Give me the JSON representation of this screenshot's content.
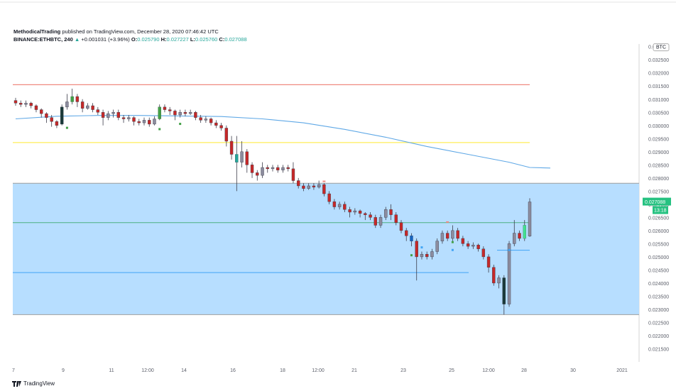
{
  "header": {
    "author": "MethodicalTrading",
    "published": "published on TradingView.com, December 28, 2020 07:46:42 UTC",
    "symbol": "BINANCE:ETHBTC, 240",
    "change_arrow": "▲",
    "change": "+0.001031 (+3.96%)",
    "o_label": "O:",
    "o_value": "0.025790",
    "h_label": "H:",
    "h_value": "0.027227",
    "l_label": "L:",
    "l_value": "0.025760",
    "c_label": "C:",
    "c_value": "0.027088"
  },
  "footer": {
    "brand": "TradingView"
  },
  "colors": {
    "up": "#26a69a",
    "down": "#b71c1c",
    "zone": "#b3dcff",
    "ma": "#5fa8e6",
    "red_line": "#ef8a80",
    "yellow_line": "#ffee58",
    "green_line": "#4caf80",
    "blue_line": "#42a5f5"
  },
  "chart_data": {
    "type": "candlestick",
    "y_axis_currency": "BTC",
    "y_ticks": [
      "0.032500",
      "0.032000",
      "0.031500",
      "0.031000",
      "0.030500",
      "0.030000",
      "0.029500",
      "0.029000",
      "0.028500",
      "0.028000",
      "0.027500",
      "0.027000",
      "0.026500",
      "0.026000",
      "0.025500",
      "0.025000",
      "0.024500",
      "0.024000",
      "0.023500",
      "0.023000",
      "0.022500",
      "0.022000",
      "0.021500"
    ],
    "ylim": [
      0.021,
      0.0331
    ],
    "x_ticks": [
      "7",
      "9",
      "11",
      "12:00",
      "14",
      "16",
      "18",
      "12:00",
      "21",
      "23",
      "25",
      "12:00",
      "28",
      "30",
      "2021"
    ],
    "last_price": "0.027088",
    "countdown": "13:18",
    "horizontal_levels": [
      {
        "name": "resistance",
        "value": 0.03155
      },
      {
        "name": "yellow",
        "value": 0.02935
      },
      {
        "name": "zone_top",
        "value": 0.0278
      },
      {
        "name": "green",
        "value": 0.0263
      },
      {
        "name": "blue",
        "value": 0.0244
      },
      {
        "name": "zone_bottom",
        "value": 0.0228
      }
    ],
    "moving_average": [
      [
        0,
        0.03025
      ],
      [
        8,
        0.03035
      ],
      [
        16,
        0.03038
      ],
      [
        24,
        0.03038
      ],
      [
        32,
        0.03036
      ],
      [
        40,
        0.03034
      ],
      [
        48,
        0.03025
      ],
      [
        56,
        0.0301
      ],
      [
        64,
        0.02985
      ],
      [
        72,
        0.02955
      ],
      [
        80,
        0.0292
      ],
      [
        88,
        0.0289
      ],
      [
        96,
        0.0286
      ],
      [
        100,
        0.0284
      ],
      [
        104,
        0.02838
      ]
    ],
    "candles": [
      [
        0.03095,
        0.03085,
        0.03105,
        0.03075
      ],
      [
        0.03085,
        0.0308,
        0.03095,
        0.0307
      ],
      [
        0.0308,
        0.03085,
        0.03095,
        0.0307
      ],
      [
        0.03085,
        0.03075,
        0.0309,
        0.03065
      ],
      [
        0.03075,
        0.0306,
        0.0308,
        0.0305
      ],
      [
        0.0306,
        0.03045,
        0.03065,
        0.0303
      ],
      [
        0.03045,
        0.0303,
        0.0305,
        0.0301
      ],
      [
        0.0303,
        0.03015,
        0.0304,
        0.02995
      ],
      [
        0.03015,
        0.03,
        0.0302,
        0.0299
      ],
      [
        0.03005,
        0.0307,
        0.0308,
        0.03
      ],
      [
        0.0307,
        0.0309,
        0.0312,
        0.0306
      ],
      [
        0.0309,
        0.0311,
        0.0314,
        0.0308
      ],
      [
        0.0311,
        0.0309,
        0.0312,
        0.0307
      ],
      [
        0.0309,
        0.03065,
        0.031,
        0.0305
      ],
      [
        0.03065,
        0.03075,
        0.03085,
        0.0306
      ],
      [
        0.03075,
        0.0306,
        0.03085,
        0.0305
      ],
      [
        0.0306,
        0.0305,
        0.0307,
        0.0304
      ],
      [
        0.0305,
        0.0303,
        0.0306,
        0.03
      ],
      [
        0.0303,
        0.03045,
        0.03055,
        0.0302
      ],
      [
        0.03045,
        0.0305,
        0.0306,
        0.0303
      ],
      [
        0.0305,
        0.0303,
        0.0306,
        0.0302
      ],
      [
        0.0303,
        0.03025,
        0.0304,
        0.0301
      ],
      [
        0.03025,
        0.0303,
        0.0304,
        0.03015
      ],
      [
        0.0303,
        0.03015,
        0.03035,
        0.03
      ],
      [
        0.03015,
        0.0301,
        0.03025,
        0.03
      ],
      [
        0.0301,
        0.0302,
        0.0303,
        0.03
      ],
      [
        0.0302,
        0.03005,
        0.0303,
        0.02995
      ],
      [
        0.03005,
        0.03025,
        0.03035,
        0.03
      ],
      [
        0.03025,
        0.0307,
        0.0308,
        0.0302
      ],
      [
        0.0307,
        0.0306,
        0.0308,
        0.0305
      ],
      [
        0.0306,
        0.03055,
        0.0307,
        0.0304
      ],
      [
        0.03055,
        0.0304,
        0.0306,
        0.0302
      ],
      [
        0.0304,
        0.0305,
        0.0306,
        0.0303
      ],
      [
        0.0305,
        0.03045,
        0.0306,
        0.03035
      ],
      [
        0.03045,
        0.0305,
        0.0306,
        0.0304
      ],
      [
        0.0305,
        0.0303,
        0.03055,
        0.0302
      ],
      [
        0.0303,
        0.0302,
        0.0304,
        0.0301
      ],
      [
        0.0302,
        0.03025,
        0.03035,
        0.0301
      ],
      [
        0.03025,
        0.0301,
        0.0303,
        0.03
      ],
      [
        0.0301,
        0.03,
        0.0302,
        0.0299
      ],
      [
        0.03,
        0.0299,
        0.0301,
        0.0298
      ],
      [
        0.0299,
        0.0294,
        0.03,
        0.0292
      ],
      [
        0.0294,
        0.0289,
        0.0296,
        0.0287
      ],
      [
        0.0289,
        0.0286,
        0.0296,
        0.0275
      ],
      [
        0.0286,
        0.029,
        0.0294,
        0.0284
      ],
      [
        0.029,
        0.0285,
        0.0291,
        0.0282
      ],
      [
        0.0285,
        0.0282,
        0.0286,
        0.028
      ],
      [
        0.0282,
        0.0281,
        0.0283,
        0.0279
      ],
      [
        0.0281,
        0.0284,
        0.0286,
        0.028
      ],
      [
        0.0284,
        0.02835,
        0.0285,
        0.0282
      ],
      [
        0.02835,
        0.0284,
        0.0285,
        0.02825
      ],
      [
        0.0284,
        0.0283,
        0.0285,
        0.0282
      ],
      [
        0.0283,
        0.0284,
        0.0285,
        0.0282
      ],
      [
        0.0284,
        0.02835,
        0.0285,
        0.02825
      ],
      [
        0.02835,
        0.0279,
        0.0286,
        0.0278
      ],
      [
        0.0279,
        0.0277,
        0.028,
        0.0276
      ],
      [
        0.0277,
        0.0276,
        0.0278,
        0.0275
      ],
      [
        0.0276,
        0.0277,
        0.0278,
        0.02755
      ],
      [
        0.0277,
        0.02765,
        0.0278,
        0.02755
      ],
      [
        0.02765,
        0.02775,
        0.0279,
        0.0276
      ],
      [
        0.02775,
        0.0274,
        0.0278,
        0.0273
      ],
      [
        0.0274,
        0.0271,
        0.0275,
        0.027
      ],
      [
        0.0271,
        0.0269,
        0.0272,
        0.0268
      ],
      [
        0.0269,
        0.027,
        0.0271,
        0.0268
      ],
      [
        0.027,
        0.0268,
        0.0271,
        0.0267
      ],
      [
        0.0268,
        0.0267,
        0.0269,
        0.0265
      ],
      [
        0.0267,
        0.02675,
        0.02685,
        0.0266
      ],
      [
        0.02675,
        0.02665,
        0.0268,
        0.0265
      ],
      [
        0.02665,
        0.0266,
        0.0267,
        0.0264
      ],
      [
        0.0266,
        0.0265,
        0.0267,
        0.0264
      ],
      [
        0.0265,
        0.0262,
        0.0266,
        0.0261
      ],
      [
        0.0262,
        0.0265,
        0.0266,
        0.0261
      ],
      [
        0.0265,
        0.0268,
        0.0269,
        0.0264
      ],
      [
        0.0268,
        0.0266,
        0.027,
        0.0264
      ],
      [
        0.0266,
        0.0263,
        0.0267,
        0.0262
      ],
      [
        0.0263,
        0.026,
        0.0264,
        0.0259
      ],
      [
        0.026,
        0.0258,
        0.0261,
        0.0256
      ],
      [
        0.0258,
        0.0256,
        0.0259,
        0.0254
      ],
      [
        0.0256,
        0.025,
        0.0257,
        0.0241
      ],
      [
        0.025,
        0.0251,
        0.0252,
        0.0249
      ],
      [
        0.0251,
        0.025,
        0.0252,
        0.0249
      ],
      [
        0.025,
        0.0252,
        0.0253,
        0.0249
      ],
      [
        0.0252,
        0.0256,
        0.0257,
        0.0251
      ],
      [
        0.0256,
        0.0259,
        0.026,
        0.0255
      ],
      [
        0.0259,
        0.0257,
        0.026,
        0.0256
      ],
      [
        0.0257,
        0.026,
        0.0262,
        0.0256
      ],
      [
        0.026,
        0.0257,
        0.0261,
        0.0256
      ],
      [
        0.0257,
        0.0255,
        0.0258,
        0.0254
      ],
      [
        0.0255,
        0.0254,
        0.0256,
        0.0253
      ],
      [
        0.0254,
        0.02545,
        0.02555,
        0.0253
      ],
      [
        0.02545,
        0.0253,
        0.0255,
        0.0252
      ],
      [
        0.0253,
        0.025,
        0.0254,
        0.0249
      ],
      [
        0.025,
        0.0246,
        0.0251,
        0.0244
      ],
      [
        0.0246,
        0.024,
        0.0247,
        0.0239
      ],
      [
        0.024,
        0.0242,
        0.0243,
        0.0238
      ],
      [
        0.0242,
        0.0232,
        0.0243,
        0.0228
      ],
      [
        0.0232,
        0.0255,
        0.0256,
        0.0231
      ],
      [
        0.0255,
        0.0259,
        0.0264,
        0.0254
      ],
      [
        0.0259,
        0.0257,
        0.026,
        0.0256
      ],
      [
        0.0257,
        0.0262,
        0.0264,
        0.0256
      ],
      [
        0.02579,
        0.02709,
        0.02723,
        0.02576
      ]
    ]
  }
}
